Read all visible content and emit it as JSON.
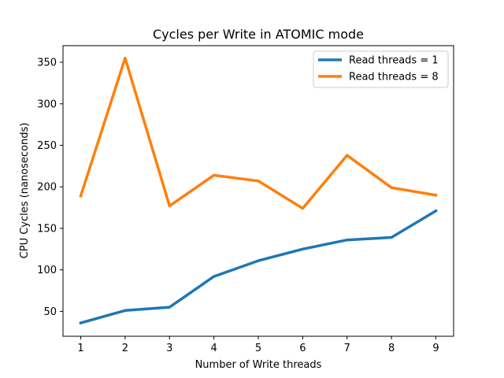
{
  "chart_data": {
    "type": "line",
    "title": "Cycles per Write in ATOMIC mode",
    "xlabel": "Number of Write threads",
    "ylabel": "CPU Cycles (nanoseconds)",
    "x": [
      1,
      2,
      3,
      4,
      5,
      6,
      7,
      8,
      9
    ],
    "xticks": [
      1,
      2,
      3,
      4,
      5,
      6,
      7,
      8,
      9
    ],
    "yticks": [
      50,
      100,
      150,
      200,
      250,
      300,
      350
    ],
    "xlim": [
      0.6,
      9.4
    ],
    "ylim": [
      20,
      370
    ],
    "grid": false,
    "legend_position": "top-right",
    "series": [
      {
        "name": "Read threads = 1",
        "color": "#1f77b4",
        "values": [
          36,
          51,
          55,
          92,
          111,
          125,
          136,
          139,
          171
        ]
      },
      {
        "name": "Read threads = 8",
        "color": "#ff7f0e",
        "values": [
          189,
          355,
          177,
          214,
          207,
          174,
          238,
          199,
          190
        ]
      }
    ]
  }
}
